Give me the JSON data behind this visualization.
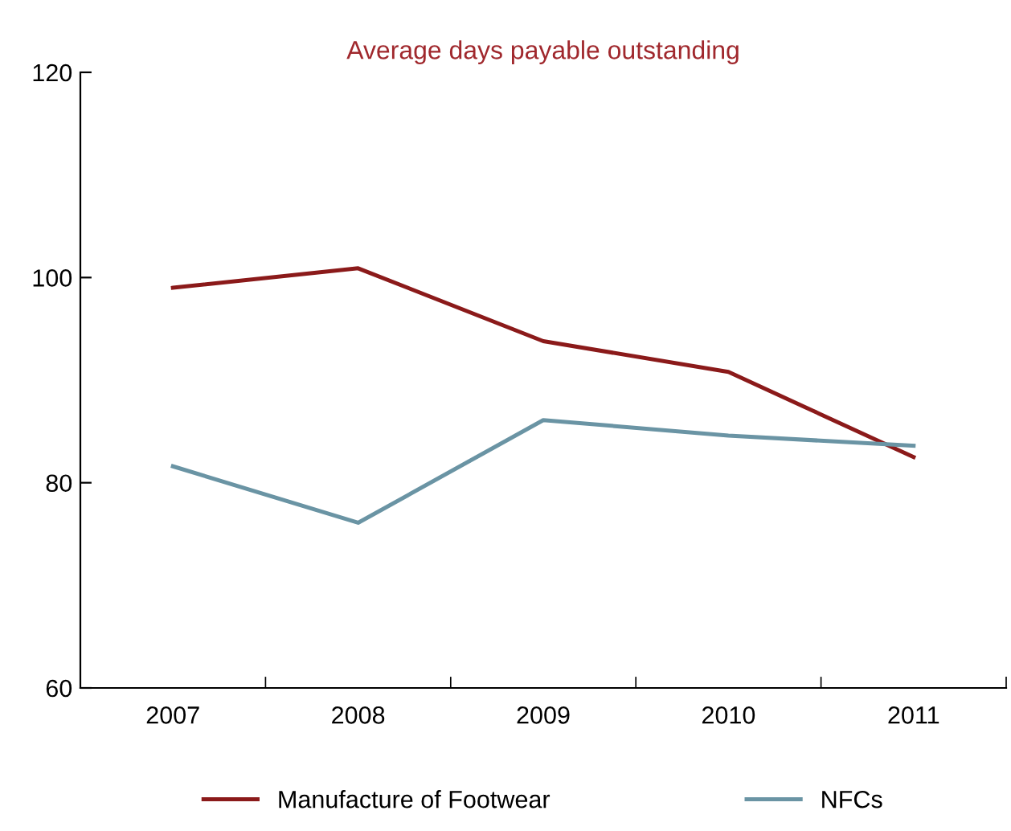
{
  "chart_data": {
    "type": "line",
    "title": "Average days payable outstanding",
    "categories": [
      "2007",
      "2008",
      "2009",
      "2010",
      "2011"
    ],
    "series": [
      {
        "name": "Manufacture of Footwear",
        "color": "#8b1a1a",
        "values": [
          99.0,
          100.9,
          93.8,
          90.8,
          82.5
        ]
      },
      {
        "name": "NFCs",
        "color": "#6a94a4",
        "values": [
          81.6,
          76.1,
          86.1,
          84.6,
          83.6
        ]
      }
    ],
    "ylim": [
      60,
      120
    ],
    "yticks": [
      60,
      80,
      100,
      120
    ],
    "grid": false,
    "legend": "bottom",
    "marker": "none",
    "line_style": "solid"
  }
}
